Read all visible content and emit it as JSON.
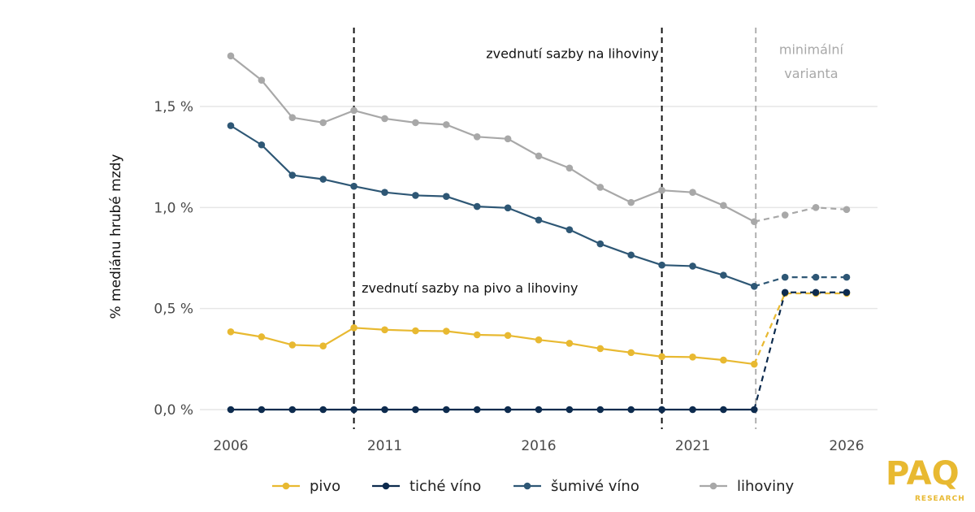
{
  "chart_data": {
    "type": "line",
    "ylabel": "% mediánu hrubé mzdy",
    "xlabel": "",
    "xlim": [
      2006,
      2026
    ],
    "ylim": [
      -0.05,
      1.8
    ],
    "x_ticks": [
      {
        "value": 2006,
        "label": "2006"
      },
      {
        "value": 2011,
        "label": "2011"
      },
      {
        "value": 2016,
        "label": "2016"
      },
      {
        "value": 2021,
        "label": "2021"
      },
      {
        "value": 2026,
        "label": "2026"
      }
    ],
    "y_ticks": [
      {
        "value": 0.0,
        "label": "0,0 %"
      },
      {
        "value": 0.5,
        "label": "0,5 %"
      },
      {
        "value": 1.0,
        "label": "1,0 %"
      },
      {
        "value": 1.5,
        "label": "1,5 %"
      }
    ],
    "grid": "horizontal",
    "legend_position": "bottom",
    "projection_from": 2023,
    "x": [
      2006,
      2007,
      2008,
      2009,
      2010,
      2011,
      2012,
      2013,
      2014,
      2015,
      2016,
      2017,
      2018,
      2019,
      2020,
      2021,
      2022,
      2023,
      2024,
      2025,
      2026
    ],
    "series": [
      {
        "name": "pivo",
        "color": "#E8B931",
        "values": [
          0.385,
          0.36,
          0.32,
          0.315,
          0.405,
          0.395,
          0.39,
          0.388,
          0.37,
          0.367,
          0.345,
          0.328,
          0.302,
          0.282,
          0.262,
          0.26,
          0.245,
          0.225,
          0.575,
          0.575,
          0.575
        ]
      },
      {
        "name": "tiché víno",
        "color": "#0D2B4E",
        "values": [
          0,
          0,
          0,
          0,
          0,
          0,
          0,
          0,
          0,
          0,
          0,
          0,
          0,
          0,
          0,
          0,
          0,
          0,
          0.58,
          0.58,
          0.58
        ]
      },
      {
        "name": "šumivé víno",
        "color": "#2E5775",
        "values": [
          1.405,
          1.31,
          1.16,
          1.14,
          1.105,
          1.075,
          1.06,
          1.055,
          1.005,
          0.998,
          0.938,
          0.89,
          0.82,
          0.765,
          0.715,
          0.71,
          0.665,
          0.61,
          0.655,
          0.655,
          0.655
        ]
      },
      {
        "name": "lihoviny",
        "color": "#A8A8A8",
        "values": [
          1.75,
          1.63,
          1.445,
          1.42,
          1.48,
          1.44,
          1.42,
          1.41,
          1.35,
          1.34,
          1.255,
          1.195,
          1.1,
          1.025,
          1.085,
          1.075,
          1.01,
          0.93,
          0.963,
          1.0,
          0.99
        ]
      }
    ],
    "vlines": [
      {
        "x": 2010,
        "style": "dashed",
        "color": "#111111"
      },
      {
        "x": 2020,
        "style": "dashed",
        "color": "#111111"
      },
      {
        "x": 2023.05,
        "style": "dashed",
        "color": "#b0b0b0"
      }
    ],
    "annotations": [
      {
        "text": "zvednutí sazby na lihoviny",
        "x": 2019.9,
        "y": 1.74,
        "anchor": "end",
        "style": "annot"
      },
      {
        "text": "zvednutí sazby na pivo a lihoviny",
        "x": 2010.25,
        "y": 0.58,
        "anchor": "start",
        "style": "annot"
      },
      {
        "text": "minimální",
        "x": 2024.85,
        "y": 1.76,
        "anchor": "middle",
        "style": "annot-grey"
      },
      {
        "text": "varianta",
        "x": 2024.85,
        "y": 1.64,
        "anchor": "middle",
        "style": "annot-grey"
      }
    ]
  },
  "logo": {
    "letters": "PAQ",
    "sub": "RESEARCH",
    "color": "#E8B931",
    "dark": "#2E5775"
  }
}
